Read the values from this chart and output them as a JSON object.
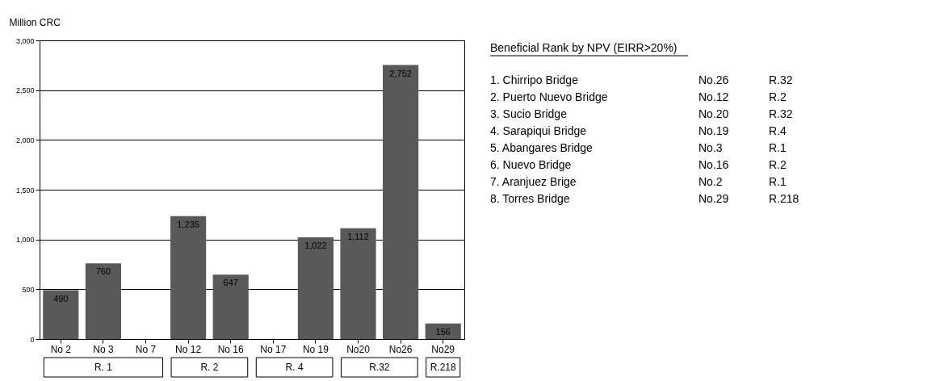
{
  "chart_data": [
    {
      "type": "bar",
      "ylabel": "Million CRC",
      "categories": [
        "No 2",
        "No 3",
        "No 7",
        "No 12",
        "No 16",
        "No 17",
        "No 19",
        "No20",
        "No26",
        "No29"
      ],
      "values": [
        490,
        760,
        null,
        1235,
        647,
        null,
        1022,
        1112,
        2752,
        156
      ],
      "value_labels": [
        "490",
        "760",
        null,
        "1,235",
        "647",
        null,
        "1,022",
        "1,112",
        "2,752",
        "156"
      ],
      "color": "#595959",
      "ylim": [
        0,
        3000
      ],
      "yticks": [
        {
          "value": 0,
          "label": "0"
        },
        {
          "value": 500,
          "label": "500"
        },
        {
          "value": 1000,
          "label": "1,000"
        },
        {
          "value": 1500,
          "label": "1,500"
        },
        {
          "value": 2000,
          "label": "2,000"
        },
        {
          "value": 2500,
          "label": "2,500"
        },
        {
          "value": 3000,
          "label": "3,000"
        }
      ],
      "grid": "y",
      "annotations": [
        "R. 1",
        "R. 2",
        "R. 4",
        "R.32",
        "R.218"
      ]
    },
    {
      "type": "other",
      "title": "Beneficial Rank by NPV    (EIRR>20%)",
      "annotations": [
        "1. Chirripo Bridge",
        "No.26",
        "R.32",
        "2. Puerto Nuevo Bridge",
        "No.12",
        "R.2",
        "3. Sucio Bridge",
        "No.20",
        "R.32",
        "4. Sarapiqui Bridge",
        "No.19",
        "R.4",
        "5. Abangares Bridge",
        "No.3",
        "R.1",
        "6. Nuevo Bridge",
        "No.16",
        "R.2",
        "7. Aranjuez Brige",
        "No.2",
        "R.1",
        "8. Torres Bridge",
        "No.29",
        "R.218"
      ]
    }
  ]
}
